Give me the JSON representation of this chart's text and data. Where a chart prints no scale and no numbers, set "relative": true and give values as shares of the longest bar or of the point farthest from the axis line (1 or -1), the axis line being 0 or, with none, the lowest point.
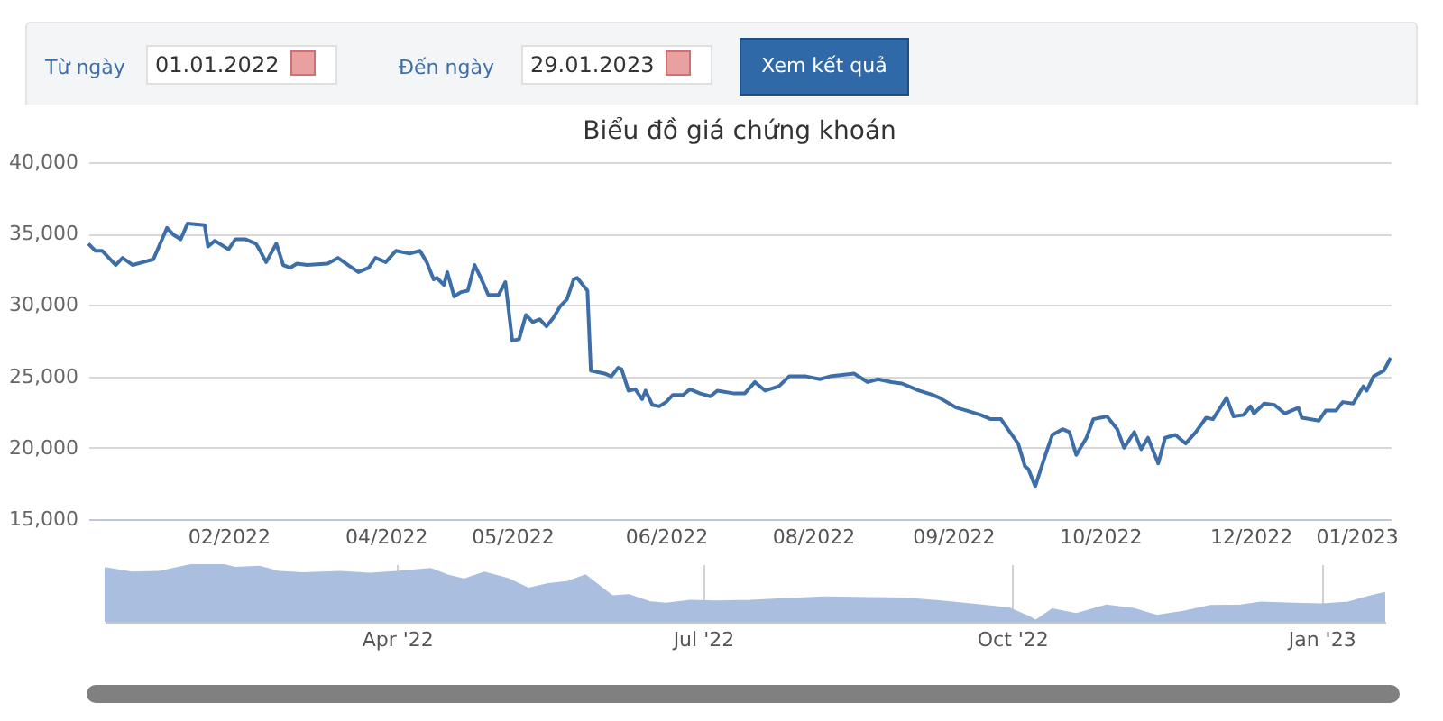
{
  "chart_data": [
    {
      "type": "line",
      "title": "Biểu đồ giá chứng khoán",
      "annotations": [
        "Từ ngày",
        "01.01.2022",
        "Đến ngày",
        "29.01.2023",
        "Xem kết quả"
      ],
      "x": [
        "2022-01-04",
        "2022-01-06",
        "2022-01-08",
        "2022-01-12",
        "2022-01-14",
        "2022-01-17",
        "2022-01-20",
        "2022-01-23",
        "2022-01-27",
        "2022-01-29",
        "2022-01-31",
        "2022-02-02",
        "2022-02-07",
        "2022-02-08",
        "2022-02-10",
        "2022-02-12",
        "2022-02-14",
        "2022-02-16",
        "2022-02-19",
        "2022-02-22",
        "2022-02-23",
        "2022-02-25",
        "2022-02-28",
        "2022-03-02",
        "2022-03-04",
        "2022-03-06",
        "2022-03-09",
        "2022-03-15",
        "2022-03-18",
        "2022-03-21",
        "2022-03-24",
        "2022-03-27",
        "2022-03-29",
        "2022-04-01",
        "2022-04-04",
        "2022-04-08",
        "2022-04-11",
        "2022-04-13",
        "2022-04-15",
        "2022-04-16",
        "2022-04-18",
        "2022-04-19",
        "2022-04-21",
        "2022-04-23",
        "2022-04-25",
        "2022-04-27",
        "2022-04-29",
        "2022-05-01",
        "2022-05-04",
        "2022-05-06",
        "2022-05-08",
        "2022-05-10",
        "2022-05-12",
        "2022-05-14",
        "2022-05-16",
        "2022-05-18",
        "2022-05-20",
        "2022-05-22",
        "2022-05-24",
        "2022-05-26",
        "2022-05-27",
        "2022-05-30",
        "2022-05-31",
        "2022-06-04",
        "2022-06-06",
        "2022-06-08",
        "2022-06-09",
        "2022-06-11",
        "2022-06-13",
        "2022-06-15",
        "2022-06-16",
        "2022-06-18",
        "2022-06-20",
        "2022-06-22",
        "2022-06-24",
        "2022-06-27",
        "2022-06-29",
        "2022-07-02",
        "2022-07-05",
        "2022-07-07",
        "2022-07-12",
        "2022-07-15",
        "2022-07-18",
        "2022-07-21",
        "2022-07-25",
        "2022-07-28",
        "2022-08-02",
        "2022-08-06",
        "2022-08-09",
        "2022-08-16",
        "2022-08-20",
        "2022-08-23",
        "2022-08-27",
        "2022-08-30",
        "2022-09-04",
        "2022-09-08",
        "2022-09-10",
        "2022-09-15",
        "2022-09-18",
        "2022-09-22",
        "2022-09-25",
        "2022-09-28",
        "2022-09-30",
        "2022-10-03",
        "2022-10-05",
        "2022-10-06",
        "2022-10-08",
        "2022-10-11",
        "2022-10-13",
        "2022-10-16",
        "2022-10-18",
        "2022-10-20",
        "2022-10-23",
        "2022-10-25",
        "2022-10-29",
        "2022-11-01",
        "2022-11-03",
        "2022-11-06",
        "2022-11-08",
        "2022-11-10",
        "2022-11-13",
        "2022-11-15",
        "2022-11-18",
        "2022-11-21",
        "2022-11-24",
        "2022-11-27",
        "2022-11-29",
        "2022-12-03",
        "2022-12-05",
        "2022-12-08",
        "2022-12-10",
        "2022-12-11",
        "2022-12-14",
        "2022-12-17",
        "2022-12-20",
        "2022-12-24",
        "2022-12-25",
        "2022-12-30",
        "2023-01-01",
        "2023-01-04",
        "2023-01-06",
        "2023-01-09",
        "2023-01-12",
        "2023-01-13",
        "2023-01-15",
        "2023-01-18",
        "2023-01-20"
      ],
      "series": [
        {
          "color": "#3d6ea8",
          "values": [
            34300,
            33800,
            33800,
            32800,
            33300,
            32800,
            33000,
            33200,
            35400,
            34900,
            34600,
            35700,
            35600,
            34100,
            34500,
            34200,
            33900,
            34600,
            34600,
            34300,
            33900,
            33000,
            34300,
            32800,
            32600,
            32900,
            32800,
            32900,
            33300,
            32800,
            32300,
            32600,
            33300,
            33000,
            33800,
            33600,
            33800,
            33000,
            31800,
            31900,
            31400,
            32300,
            30600,
            30900,
            31000,
            32800,
            31800,
            30700,
            30700,
            31600,
            27500,
            27600,
            29300,
            28800,
            29000,
            28500,
            29100,
            29900,
            30400,
            31800,
            31900,
            31000,
            25400,
            25200,
            25000,
            25600,
            25500,
            24000,
            24100,
            23400,
            24000,
            23000,
            22900,
            23200,
            23700,
            23700,
            24100,
            23800,
            23600,
            24000,
            23800,
            23800,
            24600,
            24000,
            24300,
            25000,
            25000,
            24800,
            25000,
            25200,
            24600,
            24800,
            24600,
            24500,
            24000,
            23700,
            23500,
            22800,
            22600,
            22300,
            22000,
            22000,
            21300,
            20300,
            18700,
            18500,
            17300,
            19500,
            20900,
            21300,
            21100,
            19500,
            20700,
            22000,
            22200,
            21300,
            20000,
            21100,
            19900,
            20700,
            18900,
            20700,
            20900,
            20300,
            21100,
            22100,
            22000,
            23500,
            22200,
            22300,
            22900,
            22400,
            23100,
            23000,
            22400,
            22800,
            22100,
            21900,
            22600,
            22600,
            23200,
            23100,
            24300,
            24000,
            25000,
            25400,
            26300
          ]
        }
      ],
      "xlim": [
        "2022-01-04",
        "2023-01-20"
      ],
      "xticks": [
        {
          "value": "2022-02-14",
          "label": "02/2022"
        },
        {
          "value": "2022-04-01",
          "label": "04/2022"
        },
        {
          "value": "2022-05-08",
          "label": "05/2022"
        },
        {
          "value": "2022-06-22",
          "label": "06/2022"
        },
        {
          "value": "2022-08-04",
          "label": "08/2022"
        },
        {
          "value": "2022-09-14",
          "label": "09/2022"
        },
        {
          "value": "2022-10-27",
          "label": "10/2022"
        },
        {
          "value": "2022-12-10",
          "label": "12/2022"
        },
        {
          "value": "2023-01-10",
          "label": "01/2023"
        }
      ],
      "ylim": [
        15000,
        40000
      ],
      "yticks": [
        {
          "value": 15000,
          "label": "15,000"
        },
        {
          "value": 20000,
          "label": "20,000"
        },
        {
          "value": 25000,
          "label": "25,000"
        },
        {
          "value": 30000,
          "label": "30,000"
        },
        {
          "value": 35000,
          "label": "35,000"
        },
        {
          "value": 40000,
          "label": "40,000"
        }
      ],
      "grid": "y",
      "marker": "none",
      "line_style": "solid"
    },
    {
      "type": "area",
      "x": [
        "2022-01-04",
        "2022-01-12",
        "2022-01-20",
        "2022-01-29",
        "2022-02-02",
        "2022-02-07",
        "2022-02-12",
        "2022-02-19",
        "2022-02-25",
        "2022-03-04",
        "2022-03-15",
        "2022-03-24",
        "2022-04-01",
        "2022-04-11",
        "2022-04-16",
        "2022-04-21",
        "2022-04-27",
        "2022-05-04",
        "2022-05-10",
        "2022-05-16",
        "2022-05-22",
        "2022-05-27",
        "2022-06-04",
        "2022-06-09",
        "2022-06-15",
        "2022-06-20",
        "2022-06-27",
        "2022-07-05",
        "2022-07-15",
        "2022-07-25",
        "2022-08-06",
        "2022-08-20",
        "2022-08-30",
        "2022-09-10",
        "2022-09-22",
        "2022-09-30",
        "2022-10-06",
        "2022-10-08",
        "2022-10-13",
        "2022-10-20",
        "2022-10-29",
        "2022-11-06",
        "2022-11-13",
        "2022-11-21",
        "2022-11-29",
        "2022-12-08",
        "2022-12-14",
        "2022-12-24",
        "2023-01-01",
        "2023-01-09",
        "2023-01-15",
        "2023-01-20"
      ],
      "series": [
        {
          "color": "#aabfe0",
          "values": [
            0.92,
            0.84,
            0.85,
            0.96,
            1,
            0.99,
            0.92,
            0.94,
            0.85,
            0.83,
            0.85,
            0.82,
            0.85,
            0.9,
            0.79,
            0.72,
            0.84,
            0.73,
            0.56,
            0.64,
            0.68,
            0.79,
            0.43,
            0.45,
            0.33,
            0.3,
            0.35,
            0.34,
            0.35,
            0.38,
            0.41,
            0.4,
            0.39,
            0.34,
            0.27,
            0.22,
            0.07,
            0,
            0.2,
            0.12,
            0.27,
            0.21,
            0.09,
            0.16,
            0.26,
            0.27,
            0.32,
            0.3,
            0.29,
            0.32,
            0.42,
            0.49
          ]
        }
      ],
      "xlim": [
        "2022-01-04",
        "2023-01-20"
      ],
      "xticks": [
        {
          "value": "2022-04-01",
          "label": "Apr '22"
        },
        {
          "value": "2022-07-01",
          "label": "Jul '22"
        },
        {
          "value": "2022-10-01",
          "label": "Oct '22"
        },
        {
          "value": "2023-01-01",
          "label": "Jan '23"
        }
      ],
      "relative": true,
      "grid": "x"
    }
  ]
}
